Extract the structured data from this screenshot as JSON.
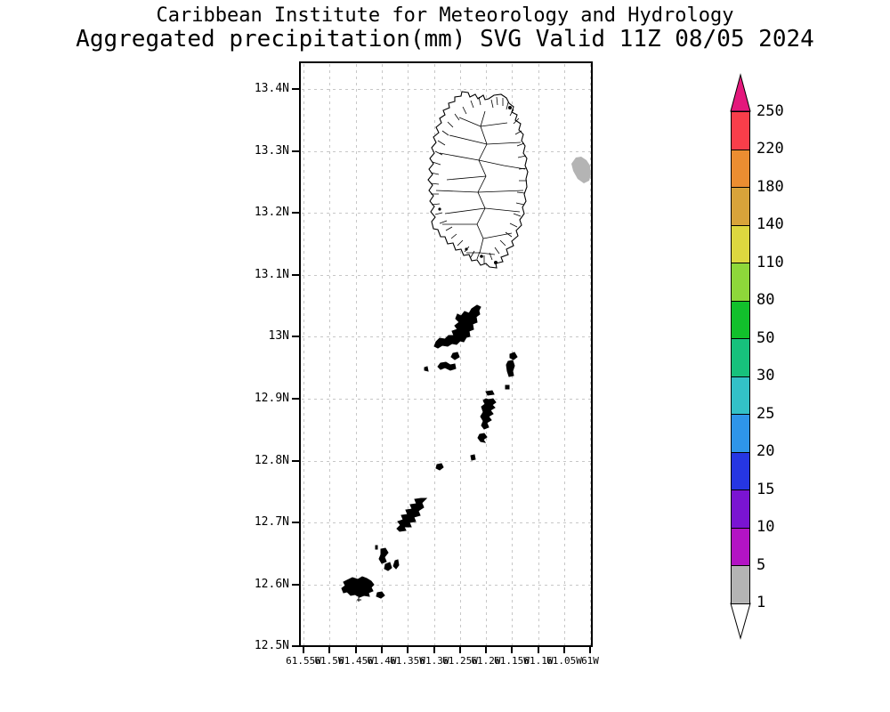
{
  "title": {
    "line1": "Caribbean Institute for Meteorology and Hydrology",
    "line2": "Aggregated precipitation(mm) SVG Valid 11Z 08/05 2024"
  },
  "map": {
    "lat_labels": [
      "13.4N",
      "13.3N",
      "13.2N",
      "13.1N",
      "13N",
      "12.9N",
      "12.8N",
      "12.7N",
      "12.6N",
      "12.5N"
    ],
    "lon_labels": [
      "61.55W",
      "61.5W",
      "61.45W",
      "61.4W",
      "61.35W",
      "61.3W",
      "61.25W",
      "61.2W",
      "61.15W",
      "61.1W",
      "61.05W",
      "61W"
    ],
    "grid_color": "#c7c7c7",
    "border_color": "#000000",
    "island_outline_color": "#000000",
    "precip_patch_color": "#b4b4b4"
  },
  "colorbar": {
    "top_arrow_color": "#e4187c",
    "bottom_arrow_color": "#ffffff",
    "outline_color": "#000000",
    "bottom_label": "1",
    "segments": [
      {
        "label": "250",
        "color": "#f83e4a"
      },
      {
        "label": "220",
        "color": "#eb8d31"
      },
      {
        "label": "180",
        "color": "#d8a33a"
      },
      {
        "label": "140",
        "color": "#ddd73f"
      },
      {
        "label": "110",
        "color": "#8ed73a"
      },
      {
        "label": "80",
        "color": "#12c02c"
      },
      {
        "label": "50",
        "color": "#17c17c"
      },
      {
        "label": "30",
        "color": "#33c1c7"
      },
      {
        "label": "25",
        "color": "#2e95e9"
      },
      {
        "label": "20",
        "color": "#2636e2"
      },
      {
        "label": "15",
        "color": "#7a14d2"
      },
      {
        "label": "10",
        "color": "#b313c4"
      },
      {
        "label": "5",
        "color": "#b4b4b4"
      }
    ]
  }
}
